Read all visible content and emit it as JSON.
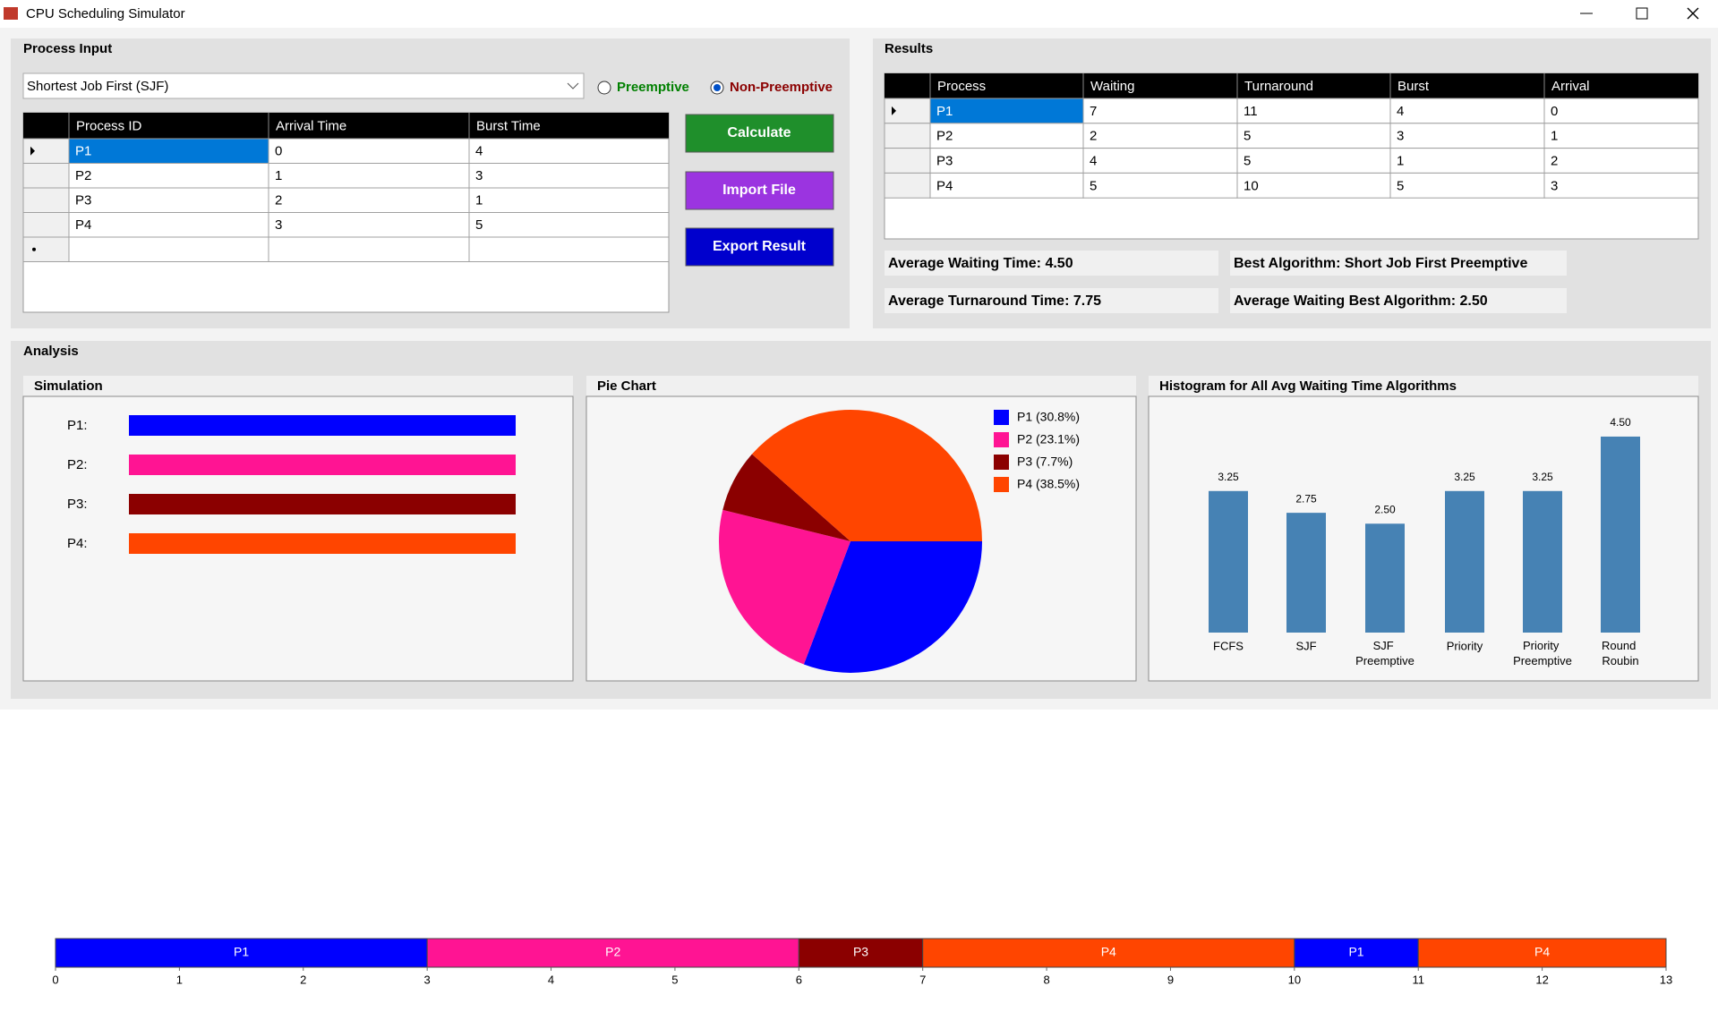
{
  "window": {
    "title": "CPU Scheduling Simulator"
  },
  "process_input": {
    "title": "Process Input",
    "algorithm": "Shortest Job First (SJF)",
    "options": [
      "Preemptive",
      "Non-Preemptive"
    ],
    "selected_option": 1,
    "table": {
      "columns": [
        "Process ID",
        "Arrival Time",
        "Burst Time"
      ],
      "rows": [
        [
          "P1",
          0,
          4
        ],
        [
          "P2",
          1,
          3
        ],
        [
          "P3",
          2,
          1
        ],
        [
          "P4",
          3,
          5
        ]
      ]
    },
    "buttons": [
      "Calculate",
      "Import File",
      "Export Result"
    ]
  },
  "results": {
    "title": "Results",
    "table": {
      "columns": [
        "Process",
        "Waiting",
        "Turnaround",
        "Burst",
        "Arrival"
      ],
      "rows": [
        [
          "P1",
          7,
          11,
          4,
          0
        ],
        [
          "P2",
          2,
          5,
          3,
          1
        ],
        [
          "P3",
          4,
          5,
          1,
          2
        ],
        [
          "P4",
          5,
          10,
          5,
          3
        ]
      ]
    },
    "stats": [
      "Average Waiting Time: 4.50",
      "Average Turnaround Time: 7.75",
      "Best Algorithm: Short Job First Preemptive",
      "Average Waiting Best Algorithm: 2.50"
    ]
  },
  "analysis": {
    "title": "Analysis",
    "simulation": {
      "title": "Simulation",
      "labels": [
        "P1:",
        "P2:",
        "P3:",
        "P4:"
      ],
      "colors": [
        "#0000ff",
        "#ff1493",
        "#8b0000",
        "#ff4500"
      ]
    }
  },
  "chart_data": [
    {
      "type": "pie",
      "title": "Pie Chart",
      "labels": [
        "P1 (30.8%)",
        "P2 (23.1%)",
        "P3 (7.7%)",
        "P4 (38.5%)"
      ],
      "values": [
        30.8,
        23.1,
        7.7,
        38.5
      ],
      "colors": [
        "#0000ff",
        "#ff1493",
        "#8b0000",
        "#ff4500"
      ]
    },
    {
      "type": "bar",
      "title": "Histogram for All Avg Waiting Time Algorithms",
      "categories": [
        "FCFS",
        "SJF",
        "SJF Preemptive",
        "Priority",
        "Priority Preemptive",
        "Round Roubin"
      ],
      "values": [
        3.25,
        2.75,
        2.5,
        3.25,
        3.25,
        4.5
      ],
      "value_labels": [
        "3.25",
        "2.75",
        "2.50",
        "3.25",
        "3.25",
        "4.50"
      ],
      "color": "#4682b4",
      "ylim": [
        0,
        5.3
      ]
    },
    {
      "type": "gantt",
      "segments": [
        {
          "name": "P1",
          "start": 0,
          "end": 3,
          "color": "#0000ff"
        },
        {
          "name": "P2",
          "start": 3,
          "end": 6,
          "color": "#ff1493"
        },
        {
          "name": "P3",
          "start": 6,
          "end": 7,
          "color": "#8b0000"
        },
        {
          "name": "P4",
          "start": 7,
          "end": 10,
          "color": "#ff4500"
        },
        {
          "name": "P1",
          "start": 10,
          "end": 11,
          "color": "#0000ff"
        },
        {
          "name": "P4",
          "start": 11,
          "end": 13,
          "color": "#ff4500"
        }
      ],
      "xlim": [
        0,
        13
      ],
      "xticks": [
        0,
        1,
        2,
        3,
        4,
        5,
        6,
        7,
        8,
        9,
        10,
        11,
        12,
        13
      ]
    }
  ]
}
